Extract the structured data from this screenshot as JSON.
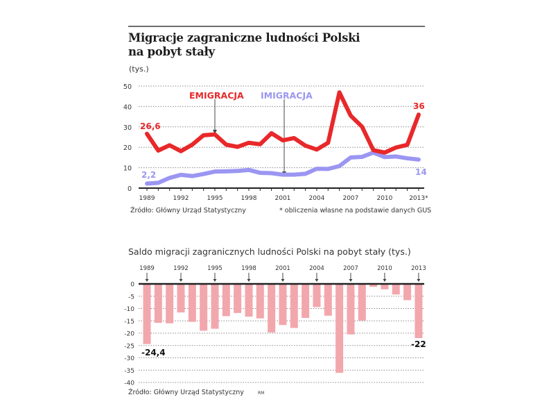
{
  "header": {
    "title_line1": "Migracje zagraniczne ludności Polski",
    "title_line2": "na pobyt stały",
    "unit": "(tys.)"
  },
  "line_chart": {
    "source": "Źródło: Główny Urząd Statystyczny",
    "footnote": "* obliczenia własne na podstawie danych GUS",
    "emigration_label": "EMIGRACJA",
    "immigration_label": "IMIGRACJA",
    "emigration_start_label": "26,6",
    "emigration_end_label": "36",
    "immigration_start_label": "2,2",
    "immigration_end_label": "14",
    "emigration_color": "#e8282a",
    "immigration_color": "#9b96f2"
  },
  "bar_chart": {
    "title": "Saldo migracji zagranicznych ludności Polski na pobyt stały (tys.)",
    "source": "Źródło: Główny Urząd Statystyczny",
    "author": "RM",
    "start_label": "-24,4",
    "end_label": "-22",
    "bar_color": "#f2a7ad"
  },
  "chart_data": [
    {
      "type": "line",
      "title": "Migracje zagraniczne ludności Polski na pobyt stały",
      "ylabel": "(tys.)",
      "xlabel": "",
      "x": [
        1989,
        1990,
        1991,
        1992,
        1993,
        1994,
        1995,
        1996,
        1997,
        1998,
        1999,
        2000,
        2001,
        2002,
        2003,
        2004,
        2005,
        2006,
        2007,
        2008,
        2009,
        2010,
        2011,
        2012,
        2013
      ],
      "x_tick_labels": [
        "1989",
        "1992",
        "1995",
        "1998",
        "2001",
        "2004",
        "2007",
        "2010",
        "2013*"
      ],
      "y_ticks": [
        0,
        10,
        20,
        30,
        40,
        50
      ],
      "ylim": [
        0,
        50
      ],
      "grid": true,
      "series": [
        {
          "name": "EMIGRACJA",
          "color": "#e8282a",
          "values": [
            26.6,
            18.4,
            21.0,
            18.1,
            21.3,
            25.9,
            26.3,
            21.3,
            20.2,
            22.2,
            21.5,
            26.9,
            23.4,
            24.5,
            20.8,
            18.9,
            22.2,
            46.9,
            35.5,
            30.1,
            18.6,
            17.4,
            19.9,
            21.2,
            36.0
          ]
        },
        {
          "name": "IMIGRACJA",
          "color": "#9b96f2",
          "values": [
            2.2,
            2.6,
            5.0,
            6.5,
            5.9,
            6.9,
            8.1,
            8.2,
            8.4,
            8.9,
            7.5,
            7.3,
            6.6,
            6.6,
            7.0,
            9.5,
            9.4,
            10.8,
            15.0,
            15.3,
            17.4,
            15.2,
            15.5,
            14.6,
            14.0
          ]
        }
      ],
      "annotations": [
        "26,6",
        "36",
        "2,2",
        "14",
        "* obliczenia własne na podstawie danych GUS"
      ]
    },
    {
      "type": "bar",
      "title": "Saldo migracji zagranicznych ludności Polski na pobyt stały (tys.)",
      "xlabel": "",
      "ylabel": "(tys.)",
      "categories": [
        "1989",
        "1990",
        "1991",
        "1992",
        "1993",
        "1994",
        "1995",
        "1996",
        "1997",
        "1998",
        "1999",
        "2000",
        "2001",
        "2002",
        "2003",
        "2004",
        "2005",
        "2006",
        "2007",
        "2008",
        "2009",
        "2010",
        "2011",
        "2012",
        "2013"
      ],
      "x_tick_labels": [
        "1989",
        "1992",
        "1995",
        "1998",
        "2001",
        "2004",
        "2007",
        "2010",
        "2013"
      ],
      "values": [
        -24.4,
        -15.8,
        -16.0,
        -11.6,
        -15.4,
        -19.0,
        -18.2,
        -13.1,
        -11.8,
        -13.3,
        -14.0,
        -19.7,
        -16.7,
        -17.9,
        -13.8,
        -9.4,
        -12.9,
        -36.1,
        -20.5,
        -14.9,
        -1.2,
        -2.2,
        -4.3,
        -6.6,
        -22.0
      ],
      "y_ticks": [
        0,
        -5,
        -10,
        -15,
        -20,
        -25,
        -30,
        -35,
        -40
      ],
      "ylim": [
        -40,
        0
      ],
      "grid": true,
      "color": "#f2a7ad",
      "annotations": [
        "-24,4",
        "-22"
      ]
    }
  ]
}
